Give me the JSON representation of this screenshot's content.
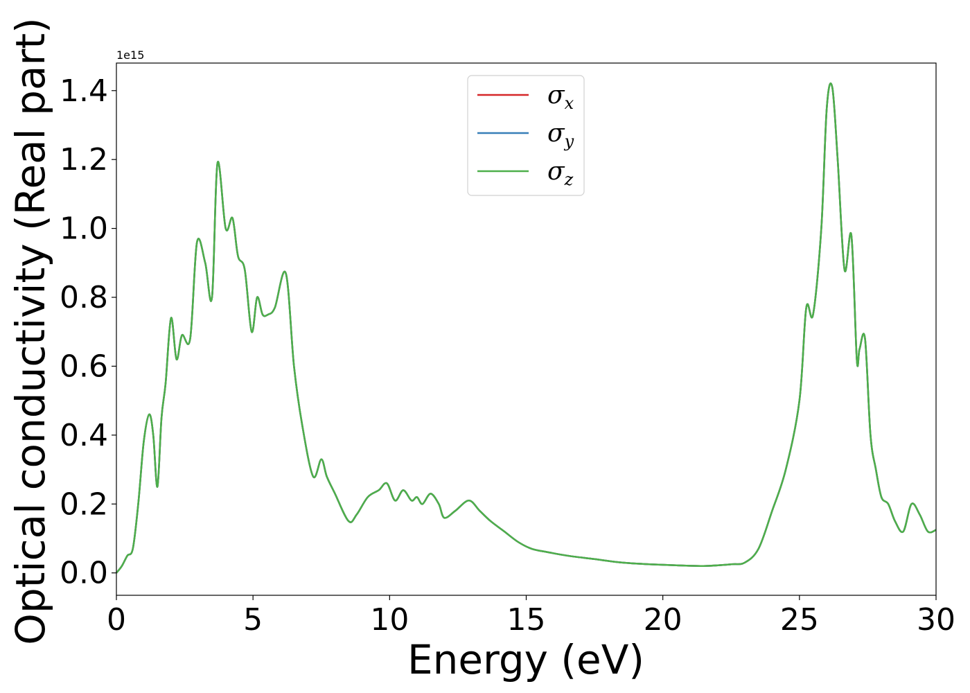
{
  "chart_data": {
    "type": "line",
    "title": "",
    "xlabel": "Energy (eV)",
    "ylabel": "Optical conductivity (Real part)",
    "y_offset_text": "1e15",
    "xlim": [
      0,
      30
    ],
    "ylim": [
      -0.065,
      1.48
    ],
    "xticks": [
      0,
      5,
      10,
      15,
      20,
      25,
      30
    ],
    "xtick_labels": [
      "0",
      "5",
      "10",
      "15",
      "20",
      "25",
      "30"
    ],
    "yticks": [
      0.0,
      0.2,
      0.4,
      0.6,
      0.8,
      1.0,
      1.2,
      1.4
    ],
    "ytick_labels": [
      "0.0",
      "0.2",
      "0.4",
      "0.6",
      "0.8",
      "1.0",
      "1.2",
      "1.4"
    ],
    "grid": false,
    "legend_position": "top-center",
    "x": [
      0,
      0.2,
      0.4,
      0.6,
      0.8,
      1.0,
      1.2,
      1.35,
      1.5,
      1.65,
      1.8,
      2.0,
      2.2,
      2.4,
      2.7,
      2.95,
      3.25,
      3.5,
      3.7,
      4.0,
      4.25,
      4.45,
      4.7,
      4.95,
      5.15,
      5.35,
      5.55,
      5.8,
      6.2,
      6.5,
      6.8,
      7.2,
      7.5,
      7.7,
      8.0,
      8.5,
      8.8,
      9.2,
      9.6,
      9.9,
      10.2,
      10.5,
      10.8,
      11.0,
      11.2,
      11.5,
      11.8,
      12.0,
      12.4,
      12.9,
      13.3,
      13.7,
      14.2,
      14.7,
      15.2,
      15.8,
      16.5,
      17.5,
      18.5,
      19.5,
      20.5,
      21.5,
      22.5,
      23.0,
      23.5,
      24.0,
      24.5,
      25.0,
      25.25,
      25.5,
      25.8,
      26.0,
      26.2,
      26.4,
      26.65,
      26.9,
      27.1,
      27.2,
      27.4,
      27.6,
      27.8,
      28.0,
      28.25,
      28.5,
      28.8,
      29.1,
      29.4,
      29.7,
      30.0
    ],
    "series": [
      {
        "name": "σx",
        "color": "#d62728",
        "values": [
          0.0,
          0.02,
          0.05,
          0.07,
          0.2,
          0.38,
          0.46,
          0.4,
          0.25,
          0.45,
          0.55,
          0.74,
          0.62,
          0.69,
          0.68,
          0.96,
          0.9,
          0.8,
          1.19,
          1.0,
          1.03,
          0.92,
          0.88,
          0.7,
          0.8,
          0.75,
          0.75,
          0.77,
          0.87,
          0.6,
          0.43,
          0.28,
          0.33,
          0.28,
          0.23,
          0.15,
          0.17,
          0.22,
          0.24,
          0.26,
          0.21,
          0.24,
          0.21,
          0.22,
          0.2,
          0.23,
          0.2,
          0.16,
          0.18,
          0.21,
          0.18,
          0.15,
          0.12,
          0.09,
          0.07,
          0.06,
          0.05,
          0.04,
          0.03,
          0.025,
          0.022,
          0.02,
          0.025,
          0.03,
          0.07,
          0.18,
          0.3,
          0.5,
          0.77,
          0.75,
          1.0,
          1.35,
          1.41,
          1.2,
          0.88,
          0.98,
          0.62,
          0.65,
          0.68,
          0.4,
          0.3,
          0.22,
          0.2,
          0.15,
          0.12,
          0.2,
          0.17,
          0.12,
          0.125
        ]
      },
      {
        "name": "σy",
        "color": "#377eb8",
        "values": [
          0.0,
          0.02,
          0.05,
          0.07,
          0.2,
          0.38,
          0.46,
          0.4,
          0.25,
          0.45,
          0.55,
          0.74,
          0.62,
          0.69,
          0.68,
          0.96,
          0.9,
          0.8,
          1.19,
          1.0,
          1.03,
          0.92,
          0.88,
          0.7,
          0.8,
          0.75,
          0.75,
          0.77,
          0.87,
          0.6,
          0.43,
          0.28,
          0.33,
          0.28,
          0.23,
          0.15,
          0.17,
          0.22,
          0.24,
          0.26,
          0.21,
          0.24,
          0.21,
          0.22,
          0.2,
          0.23,
          0.2,
          0.16,
          0.18,
          0.21,
          0.18,
          0.15,
          0.12,
          0.09,
          0.07,
          0.06,
          0.05,
          0.04,
          0.03,
          0.025,
          0.022,
          0.02,
          0.025,
          0.03,
          0.07,
          0.18,
          0.3,
          0.5,
          0.77,
          0.75,
          1.0,
          1.35,
          1.41,
          1.2,
          0.88,
          0.98,
          0.62,
          0.65,
          0.68,
          0.4,
          0.3,
          0.22,
          0.2,
          0.15,
          0.12,
          0.2,
          0.17,
          0.12,
          0.125
        ]
      },
      {
        "name": "σz",
        "color": "#4daf4a",
        "values": [
          0.0,
          0.02,
          0.05,
          0.07,
          0.2,
          0.38,
          0.46,
          0.4,
          0.25,
          0.45,
          0.55,
          0.74,
          0.62,
          0.69,
          0.68,
          0.96,
          0.9,
          0.8,
          1.19,
          1.0,
          1.03,
          0.92,
          0.88,
          0.7,
          0.8,
          0.75,
          0.75,
          0.77,
          0.87,
          0.6,
          0.43,
          0.28,
          0.33,
          0.28,
          0.23,
          0.15,
          0.17,
          0.22,
          0.24,
          0.26,
          0.21,
          0.24,
          0.21,
          0.22,
          0.2,
          0.23,
          0.2,
          0.16,
          0.18,
          0.21,
          0.18,
          0.15,
          0.12,
          0.09,
          0.07,
          0.06,
          0.05,
          0.04,
          0.03,
          0.025,
          0.022,
          0.02,
          0.025,
          0.03,
          0.07,
          0.18,
          0.3,
          0.5,
          0.77,
          0.75,
          1.0,
          1.35,
          1.41,
          1.2,
          0.88,
          0.98,
          0.62,
          0.65,
          0.68,
          0.4,
          0.3,
          0.22,
          0.2,
          0.15,
          0.12,
          0.2,
          0.17,
          0.12,
          0.125
        ]
      }
    ],
    "legend": [
      {
        "symbol": "σ",
        "sub": "x",
        "color": "#d62728"
      },
      {
        "symbol": "σ",
        "sub": "y",
        "color": "#377eb8"
      },
      {
        "symbol": "σ",
        "sub": "z",
        "color": "#4daf4a"
      }
    ]
  }
}
